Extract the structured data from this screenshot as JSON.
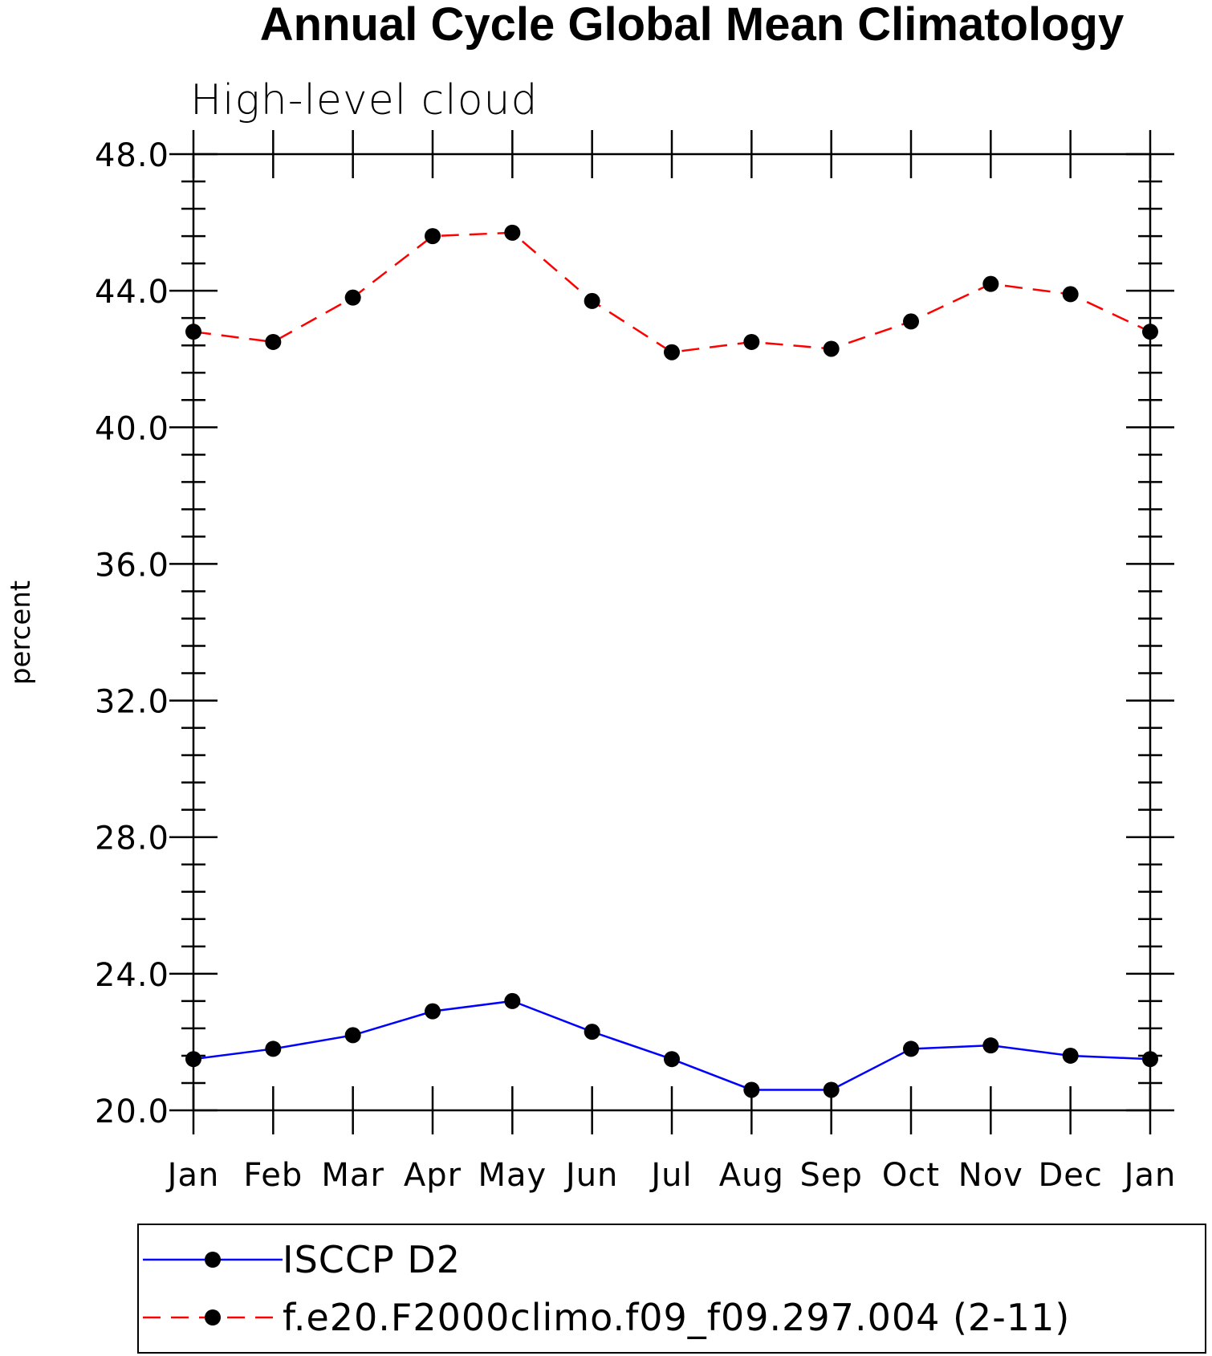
{
  "chart_data": {
    "type": "line",
    "title": "Annual Cycle Global Mean Climatology",
    "subtitle": "High-level cloud",
    "xlabel": "",
    "ylabel": "percent",
    "categories": [
      "Jan",
      "Feb",
      "Mar",
      "Apr",
      "May",
      "Jun",
      "Jul",
      "Aug",
      "Sep",
      "Oct",
      "Nov",
      "Dec",
      "Jan"
    ],
    "ylim": [
      20.0,
      48.0
    ],
    "yticks": [
      "20.0",
      "24.0",
      "28.0",
      "32.0",
      "36.0",
      "40.0",
      "44.0",
      "48.0"
    ],
    "grid": false,
    "legend_position": "bottom",
    "series": [
      {
        "name": "ISCCP D2",
        "color": "#0000ff",
        "line_style": "solid",
        "marker": "filled-circle",
        "values": [
          21.5,
          21.8,
          22.2,
          22.9,
          23.2,
          22.3,
          21.5,
          20.6,
          20.6,
          21.8,
          21.9,
          21.6,
          21.5
        ]
      },
      {
        "name": "f.e20.F2000climo.f09_f09.297.004 (2-11)",
        "color": "#ff0000",
        "line_style": "dashed",
        "marker": "filled-circle",
        "values": [
          42.8,
          42.5,
          43.8,
          45.6,
          45.7,
          43.7,
          42.2,
          42.5,
          42.3,
          43.1,
          44.2,
          43.9,
          42.8
        ]
      }
    ]
  }
}
